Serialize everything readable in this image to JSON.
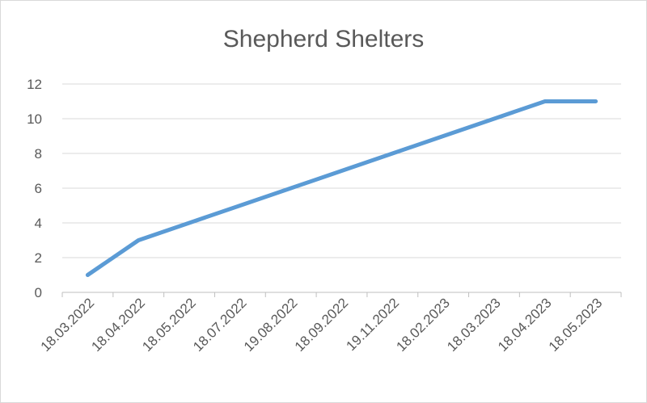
{
  "chart_data": {
    "type": "line",
    "title": "Shepherd Shelters",
    "xlabel": "",
    "ylabel": "",
    "categories": [
      "18.03.2022",
      "18.04.2022",
      "18.05.2022",
      "18.07.2022",
      "19.08.2022",
      "18.09.2022",
      "19.11.2022",
      "18.02.2023",
      "18.03.2023",
      "18.04.2023",
      "18.05.2023"
    ],
    "series": [
      {
        "values": [
          1,
          3,
          4,
          5,
          6,
          7,
          8,
          9,
          10,
          11,
          11
        ],
        "color": "#5b9bd5"
      }
    ],
    "ylim": [
      0,
      12
    ],
    "yticks": [
      0,
      2,
      4,
      6,
      8,
      10,
      12
    ],
    "grid": true,
    "legend": "none"
  }
}
